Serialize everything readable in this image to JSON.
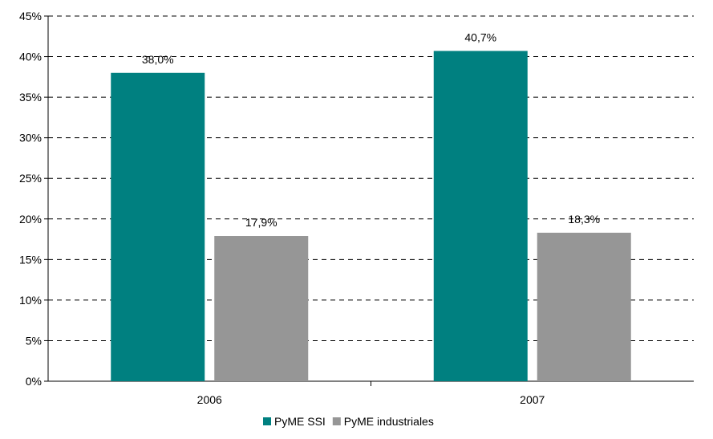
{
  "chart_data": {
    "type": "bar",
    "categories": [
      "2006",
      "2007"
    ],
    "series": [
      {
        "name": "PyME SSI",
        "values": [
          38.0,
          40.7
        ],
        "labels": [
          "38,0%",
          "40,7%"
        ],
        "color": "#008080"
      },
      {
        "name": "PyME industriales",
        "values": [
          17.9,
          18.3
        ],
        "labels": [
          "17,9%",
          "18,3%"
        ],
        "color": "#969696"
      }
    ],
    "ylim": [
      0,
      45
    ],
    "yticks": [
      "0%",
      "5%",
      "10%",
      "15%",
      "20%",
      "25%",
      "30%",
      "35%",
      "40%",
      "45%"
    ],
    "grid": "dashed horizontal",
    "legend_position": "bottom"
  }
}
